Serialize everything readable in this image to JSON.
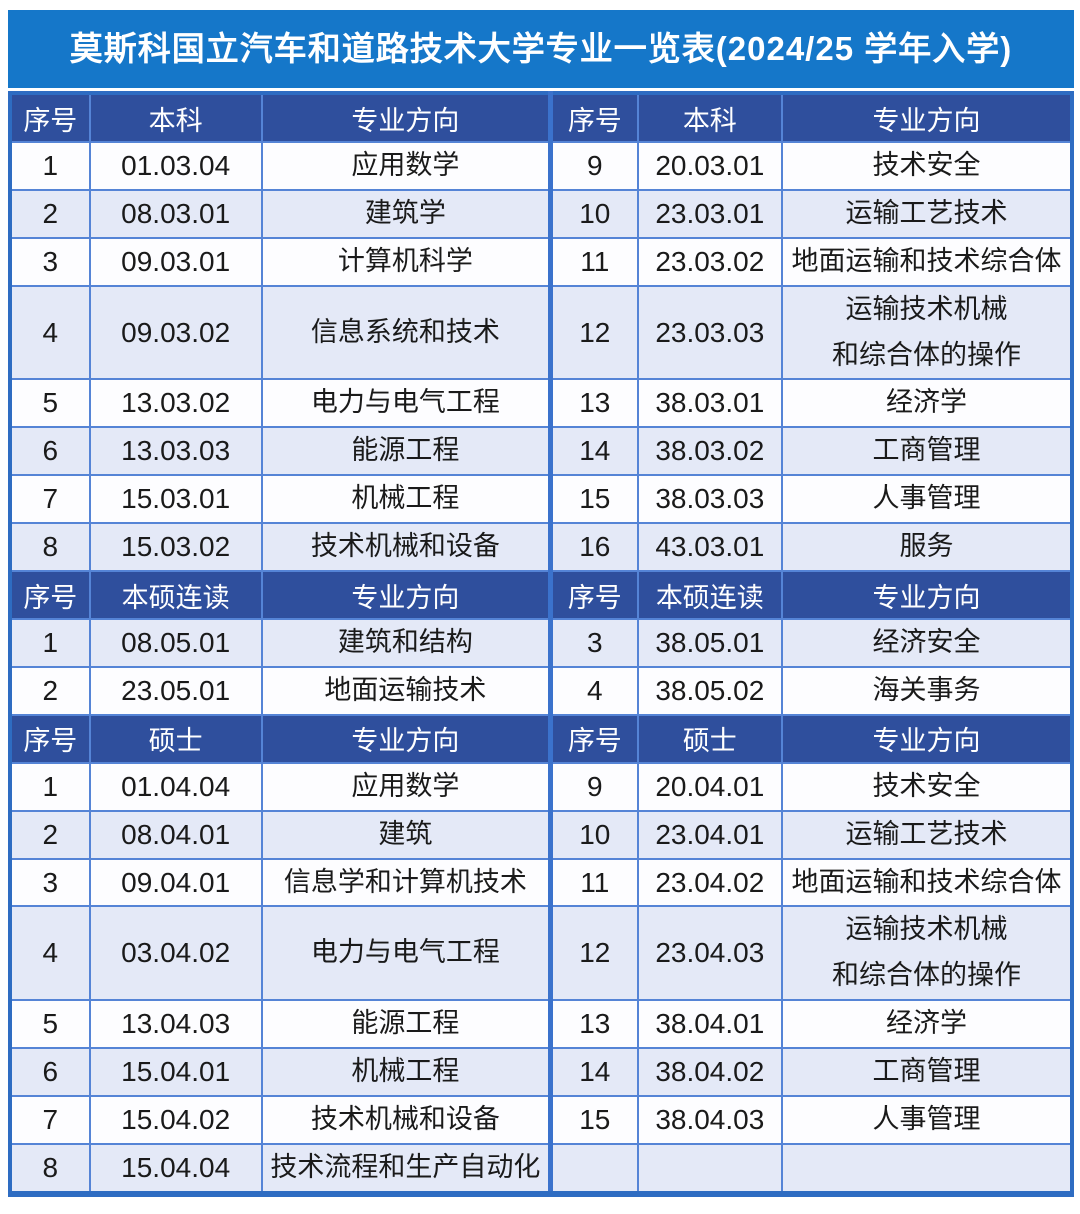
{
  "title": "莫斯科国立汽车和道路技术大学专业一览表(2024/25 学年入学)",
  "colors": {
    "title_bg": "#1577c9",
    "section_header_bg": "#2f4f9d",
    "row_white": "#fdfdff",
    "row_shaded": "#e4e9f7",
    "grid_line": "#5584d6",
    "outer_border": "#2e6cc2",
    "header_text": "#ffffff",
    "cell_text": "#1a1a1a"
  },
  "sections": [
    {
      "name": "bachelor",
      "headers": [
        "序号",
        "本科",
        "专业方向",
        "序号",
        "本科",
        "专业方向"
      ],
      "rows": [
        {
          "l": [
            "1",
            "01.03.04",
            "应用数学"
          ],
          "r": [
            "9",
            "20.03.01",
            "技术安全"
          ]
        },
        {
          "l": [
            "2",
            "08.03.01",
            "建筑学"
          ],
          "r": [
            "10",
            "23.03.01",
            "运输工艺技术"
          ]
        },
        {
          "l": [
            "3",
            "09.03.01",
            "计算机科学"
          ],
          "r": [
            "11",
            "23.03.02",
            "地面运输和技术综合体"
          ]
        },
        {
          "l": [
            "4",
            "09.03.02",
            "信息系统和技术"
          ],
          "r": [
            "12",
            "23.03.03",
            "运输技术机械\n和综合体的操作"
          ]
        },
        {
          "l": [
            "5",
            "13.03.02",
            "电力与电气工程"
          ],
          "r": [
            "13",
            "38.03.01",
            "经济学"
          ]
        },
        {
          "l": [
            "6",
            "13.03.03",
            "能源工程"
          ],
          "r": [
            "14",
            "38.03.02",
            "工商管理"
          ]
        },
        {
          "l": [
            "7",
            "15.03.01",
            "机械工程"
          ],
          "r": [
            "15",
            "38.03.03",
            "人事管理"
          ]
        },
        {
          "l": [
            "8",
            "15.03.02",
            "技术机械和设备"
          ],
          "r": [
            "16",
            "43.03.01",
            "服务"
          ]
        }
      ]
    },
    {
      "name": "specialist",
      "headers": [
        "序号",
        "本硕连读",
        "专业方向",
        "序号",
        "本硕连读",
        "专业方向"
      ],
      "rows": [
        {
          "l": [
            "1",
            "08.05.01",
            "建筑和结构"
          ],
          "r": [
            "3",
            "38.05.01",
            "经济安全"
          ]
        },
        {
          "l": [
            "2",
            "23.05.01",
            "地面运输技术"
          ],
          "r": [
            "4",
            "38.05.02",
            "海关事务"
          ]
        }
      ]
    },
    {
      "name": "master",
      "headers": [
        "序号",
        "硕士",
        "专业方向",
        "序号",
        "硕士",
        "专业方向"
      ],
      "rows": [
        {
          "l": [
            "1",
            "01.04.04",
            "应用数学"
          ],
          "r": [
            "9",
            "20.04.01",
            "技术安全"
          ]
        },
        {
          "l": [
            "2",
            "08.04.01",
            "建筑"
          ],
          "r": [
            "10",
            "23.04.01",
            "运输工艺技术"
          ]
        },
        {
          "l": [
            "3",
            "09.04.01",
            "信息学和计算机技术"
          ],
          "r": [
            "11",
            "23.04.02",
            "地面运输和技术综合体"
          ]
        },
        {
          "l": [
            "4",
            "03.04.02",
            "电力与电气工程"
          ],
          "r": [
            "12",
            "23.04.03",
            "运输技术机械\n和综合体的操作"
          ]
        },
        {
          "l": [
            "5",
            "13.04.03",
            "能源工程"
          ],
          "r": [
            "13",
            "38.04.01",
            "经济学"
          ]
        },
        {
          "l": [
            "6",
            "15.04.01",
            "机械工程"
          ],
          "r": [
            "14",
            "38.04.02",
            "工商管理"
          ]
        },
        {
          "l": [
            "7",
            "15.04.02",
            "技术机械和设备"
          ],
          "r": [
            "15",
            "38.04.03",
            "人事管理"
          ]
        },
        {
          "l": [
            "8",
            "15.04.04",
            "技术流程和生产自动化"
          ],
          "r": [
            "",
            "",
            ""
          ]
        }
      ]
    }
  ]
}
